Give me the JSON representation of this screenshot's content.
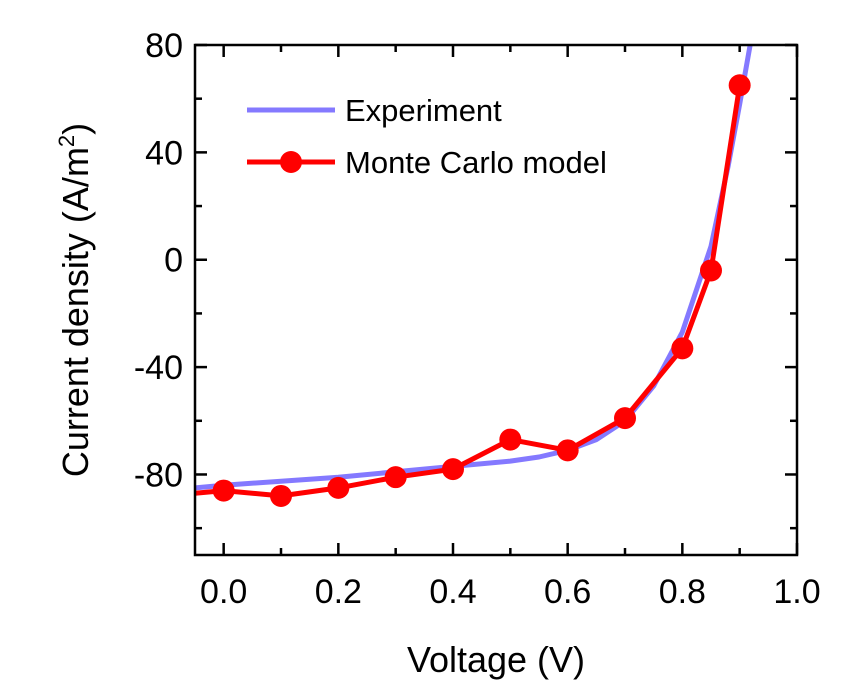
{
  "chart_data": {
    "type": "line",
    "title": "",
    "xlabel": "Voltage (V)",
    "ylabel": "Current density (A/m",
    "ylabel_superscript": "2",
    "ylabel_suffix": ")",
    "xlim": [
      -0.05,
      1.0
    ],
    "ylim": [
      -110,
      80
    ],
    "x_ticks": [
      0.0,
      0.2,
      0.4,
      0.6,
      0.8,
      1.0
    ],
    "x_tick_labels": [
      "0.0",
      "0.2",
      "0.4",
      "0.6",
      "0.8",
      "1.0"
    ],
    "y_ticks": [
      -80,
      -40,
      0,
      40,
      80
    ],
    "y_tick_labels": [
      "-80",
      "-40",
      "0",
      "40",
      "80"
    ],
    "grid": false,
    "legend_position": "top-left",
    "series": [
      {
        "name": "Experiment",
        "color": "#8479ff",
        "marker": "none",
        "x": [
          -0.05,
          0.0,
          0.1,
          0.2,
          0.3,
          0.4,
          0.5,
          0.55,
          0.6,
          0.65,
          0.7,
          0.75,
          0.8,
          0.85,
          0.88,
          0.9,
          0.92
        ],
        "y": [
          -85,
          -84,
          -82.5,
          -81,
          -79,
          -77,
          -75,
          -73.5,
          -71,
          -67,
          -60,
          -47,
          -27,
          5,
          35,
          58,
          82
        ]
      },
      {
        "name": "Monte Carlo model",
        "color": "#ff0000",
        "marker": "circle",
        "x": [
          -0.05,
          0.0,
          0.1,
          0.2,
          0.3,
          0.4,
          0.5,
          0.6,
          0.7,
          0.8,
          0.85,
          0.9
        ],
        "y": [
          -87,
          -86,
          -88,
          -85,
          -81,
          -78,
          -67,
          -71,
          -59,
          -33,
          -4,
          65
        ]
      }
    ]
  }
}
